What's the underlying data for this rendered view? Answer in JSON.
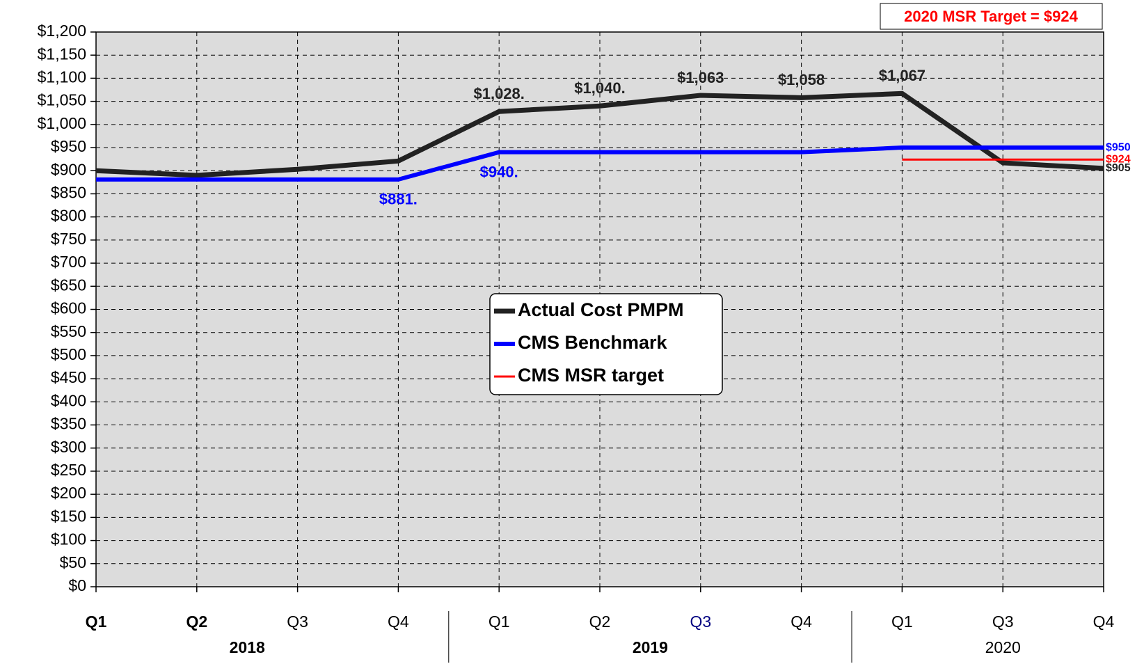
{
  "chart_data": {
    "type": "line",
    "title": "2020 MSR Target = $924",
    "categories": [
      "Q1",
      "Q2",
      "Q3",
      "Q4",
      "Q1",
      "Q2",
      "Q3",
      "Q4",
      "Q1",
      "Q3",
      "Q4"
    ],
    "category_groups": [
      "2018",
      "2018",
      "2018",
      "2018",
      "2019",
      "2019",
      "2019",
      "2019",
      "2020",
      "2020",
      "2020"
    ],
    "series": [
      {
        "name": "Actual Cost PMPM",
        "color": "#222222",
        "values": [
          900,
          890,
          903,
          921,
          1028,
          1040,
          1063,
          1058,
          1067,
          917,
          905
        ],
        "value_labels": [
          null,
          null,
          null,
          null,
          "$1,028.",
          "$1,040.",
          "$1,063",
          "$1,058",
          "$1,067",
          null,
          "$905"
        ]
      },
      {
        "name": "CMS Benchmark",
        "color": "#0000ff",
        "values": [
          881,
          881,
          881,
          881,
          940,
          940,
          940,
          940,
          950,
          950,
          950
        ],
        "value_labels": [
          null,
          null,
          null,
          "$881.",
          "$940.",
          null,
          null,
          null,
          null,
          null,
          "$950"
        ]
      },
      {
        "name": "CMS MSR target",
        "color": "#ff0000",
        "values": [
          null,
          null,
          null,
          null,
          null,
          null,
          null,
          null,
          924,
          924,
          924
        ],
        "value_labels": [
          null,
          null,
          null,
          null,
          null,
          null,
          null,
          null,
          null,
          null,
          "$924"
        ]
      }
    ],
    "ylim": [
      0,
      1200
    ],
    "yticks": [
      {
        "value": 0,
        "label": "$0"
      },
      {
        "value": 50,
        "label": "$50"
      },
      {
        "value": 100,
        "label": "$100"
      },
      {
        "value": 150,
        "label": "$150"
      },
      {
        "value": 200,
        "label": "$200"
      },
      {
        "value": 250,
        "label": "$250"
      },
      {
        "value": 300,
        "label": "$300"
      },
      {
        "value": 350,
        "label": "$350"
      },
      {
        "value": 400,
        "label": "$400"
      },
      {
        "value": 450,
        "label": "$450"
      },
      {
        "value": 500,
        "label": "$500"
      },
      {
        "value": 550,
        "label": "$550"
      },
      {
        "value": 600,
        "label": "$600"
      },
      {
        "value": 650,
        "label": "$650"
      },
      {
        "value": 700,
        "label": "$700"
      },
      {
        "value": 750,
        "label": "$750"
      },
      {
        "value": 800,
        "label": "$800"
      },
      {
        "value": 850,
        "label": "$850"
      },
      {
        "value": 900,
        "label": "$900"
      },
      {
        "value": 950,
        "label": "$950"
      },
      {
        "value": 1000,
        "label": "$1,000"
      },
      {
        "value": 1050,
        "label": "$1,050"
      },
      {
        "value": 1100,
        "label": "$1,100"
      },
      {
        "value": 1150,
        "label": "$1,150"
      },
      {
        "value": 1200,
        "label": "$1,200"
      }
    ],
    "grid": true,
    "legend": "center"
  }
}
